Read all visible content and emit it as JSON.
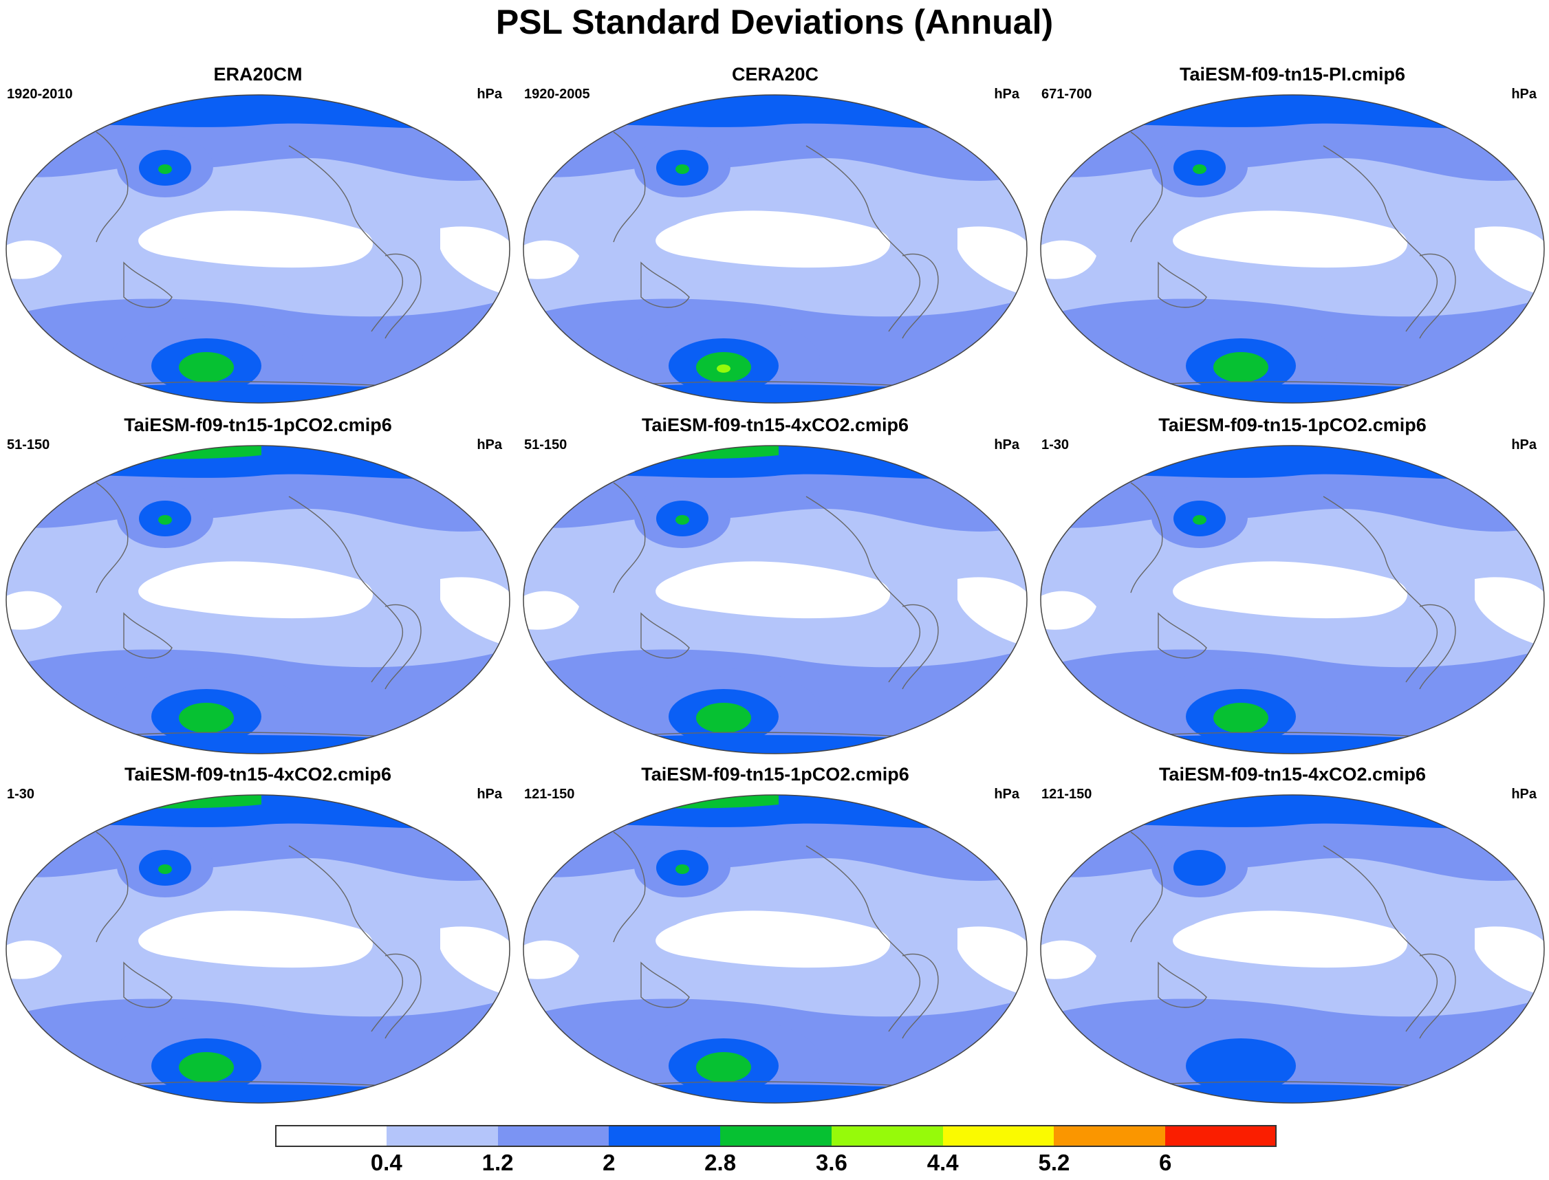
{
  "title": "PSL Standard Deviations (Annual)",
  "panels": [
    {
      "title": "ERA20CM",
      "period": "1920-2010",
      "units": "hPa",
      "max_level": 3,
      "nh_band": 2
    },
    {
      "title": "CERA20C",
      "period": "1920-2005",
      "units": "hPa",
      "max_level": 4,
      "nh_band": 2
    },
    {
      "title": "TaiESM-f09-tn15-PI.cmip6",
      "period": "671-700",
      "units": "hPa",
      "max_level": 3,
      "nh_band": 2
    },
    {
      "title": "TaiESM-f09-tn15-1pCO2.cmip6",
      "period": "51-150",
      "units": "hPa",
      "max_level": 3,
      "nh_band": 3
    },
    {
      "title": "TaiESM-f09-tn15-4xCO2.cmip6",
      "period": "51-150",
      "units": "hPa",
      "max_level": 3,
      "nh_band": 3
    },
    {
      "title": "TaiESM-f09-tn15-1pCO2.cmip6",
      "period": "1-30",
      "units": "hPa",
      "max_level": 3,
      "nh_band": 2
    },
    {
      "title": "TaiESM-f09-tn15-4xCO2.cmip6",
      "period": "1-30",
      "units": "hPa",
      "max_level": 3,
      "nh_band": 3
    },
    {
      "title": "TaiESM-f09-tn15-1pCO2.cmip6",
      "period": "121-150",
      "units": "hPa",
      "max_level": 3,
      "nh_band": 3
    },
    {
      "title": "TaiESM-f09-tn15-4xCO2.cmip6",
      "period": "121-150",
      "units": "hPa",
      "max_level": 2,
      "nh_band": 2
    }
  ],
  "colorbar": {
    "colors": [
      "#ffffff",
      "#b4c5fa",
      "#7b94f3",
      "#0a5ff5",
      "#06c132",
      "#96fa0a",
      "#fafa00",
      "#fa9600",
      "#fa1e00"
    ],
    "labels": [
      "0.4",
      "1.2",
      "2",
      "2.8",
      "3.6",
      "4.4",
      "5.2",
      "6"
    ]
  }
}
